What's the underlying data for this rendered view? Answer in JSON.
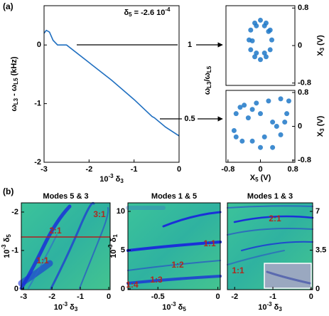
{
  "panel_labels": [
    "(a)",
    "(b)"
  ],
  "chart_data": [
    {
      "type": "line",
      "color": "#1f6fc0",
      "annotation": [
        "δ",
        "5",
        " = -2.6 10",
        "-4"
      ],
      "x_label": [
        "10",
        "-3",
        " δ",
        "3"
      ],
      "y_label": [
        "ω",
        "L3",
        " - ω",
        "L5",
        " (kHz)"
      ],
      "y2_label": [
        "ω",
        "L3",
        "/ω",
        "L5"
      ],
      "x": [
        -3,
        -2.95,
        -2.88,
        -2.8,
        -2.7,
        -2.5,
        -2,
        -1.5,
        -1,
        -0.6,
        -0.55,
        -0.3,
        0
      ],
      "values": [
        0.2,
        0.25,
        0.22,
        0.08,
        0,
        0,
        -0.3,
        -0.6,
        -0.93,
        -1.22,
        -1.24,
        -1.4,
        -1.55
      ],
      "xlim": [
        -3,
        0
      ],
      "xticks": [
        -3,
        -2,
        -1,
        0
      ],
      "ylim": [
        -2,
        0.67
      ],
      "yticks": [
        -2,
        -1,
        0
      ],
      "y2lim": [
        0.207,
        1.264
      ],
      "y2ticks": [
        1,
        0.5
      ]
    },
    {
      "type": "scatter",
      "color": "#1f78c8",
      "y_axis_side": "right",
      "y_label": [
        "X",
        "3",
        " (V)"
      ],
      "x": [
        0.28,
        0.24,
        0.14,
        0,
        -0.14,
        -0.24,
        -0.28,
        -0.24,
        -0.14,
        0,
        0.14,
        0.24,
        0.2,
        0.1,
        -0.1,
        -0.2,
        -0.1,
        0.1
      ],
      "values": [
        0.12,
        0.33,
        0.48,
        0.54,
        0.48,
        0.33,
        0.12,
        -0.09,
        -0.24,
        -0.3,
        -0.24,
        -0.09,
        0.3,
        0.42,
        0.42,
        0.1,
        -0.16,
        -0.16
      ],
      "xlim": [
        -0.85,
        0.85
      ],
      "ylim": [
        -0.85,
        0.85
      ],
      "yticks": [
        0.8,
        0,
        -0.8
      ]
    },
    {
      "type": "scatter",
      "color": "#1f78c8",
      "y_axis_side": "right",
      "y_label": [
        "X",
        "3",
        " (V)"
      ],
      "x_label": [
        "X",
        "5",
        " (V)"
      ],
      "x": [
        -0.65,
        -0.6,
        -0.4,
        -0.1,
        0.2,
        0.5,
        0.7,
        0.65,
        0.4,
        0.1,
        -0.2,
        -0.45,
        -0.6,
        -0.3,
        0,
        0.3,
        0.5,
        0.3,
        0,
        -0.5,
        0.6,
        -0.2
      ],
      "values": [
        -0.1,
        0.3,
        0.5,
        0.55,
        0.6,
        0.65,
        0.6,
        0.3,
        0,
        -0.25,
        -0.35,
        -0.35,
        -0.25,
        0.2,
        0.3,
        0.1,
        -0.2,
        -0.5,
        -0.5,
        0.45,
        0.1,
        0.4
      ],
      "xlim": [
        -0.85,
        0.85
      ],
      "xticks": [
        -0.8,
        0,
        0.8
      ],
      "ylim": [
        -0.85,
        0.85
      ],
      "yticks": [
        0.8,
        0,
        -0.8
      ]
    },
    {
      "type": "heatmap",
      "title": "Modes 5 & 3",
      "x_label": [
        "10",
        "-3",
        " δ",
        "3"
      ],
      "y_label": [
        "10",
        "-3",
        " δ",
        "5"
      ],
      "annotations": [
        "3:1",
        "2:1",
        "1:1"
      ],
      "xlim": [
        -3.08,
        0.05
      ],
      "xticks": [
        -3,
        -2,
        -1,
        0
      ],
      "ylim": [
        0.02,
        -2.24
      ],
      "yticks": [
        -2,
        -1,
        0
      ]
    },
    {
      "type": "heatmap",
      "title": "Modes 1 & 5",
      "x_label": [
        "10",
        "-3",
        " δ",
        "5"
      ],
      "y_label": [
        "10",
        "-3",
        " δ",
        "1"
      ],
      "annotations": [
        "1:1",
        "1:2",
        "1:3",
        "1:4"
      ],
      "xlim": [
        -0.75,
        0.02
      ],
      "xticks": [
        -0.5,
        0
      ],
      "ylim": [
        -0.1,
        11.1
      ],
      "yticks": [
        0,
        5,
        10
      ]
    },
    {
      "type": "heatmap",
      "title": "Modes 1 & 3",
      "y_axis_side": "right",
      "x_label": [
        "10",
        "-3",
        " δ",
        "3"
      ],
      "annotations": [
        "2:1",
        "1:1"
      ],
      "xlim": [
        -2.19,
        0.04
      ],
      "xticks": [
        -2,
        -1,
        0
      ],
      "ylim": [
        -0.06,
        7.77
      ],
      "yticks": [
        0,
        3.5,
        7
      ]
    }
  ]
}
